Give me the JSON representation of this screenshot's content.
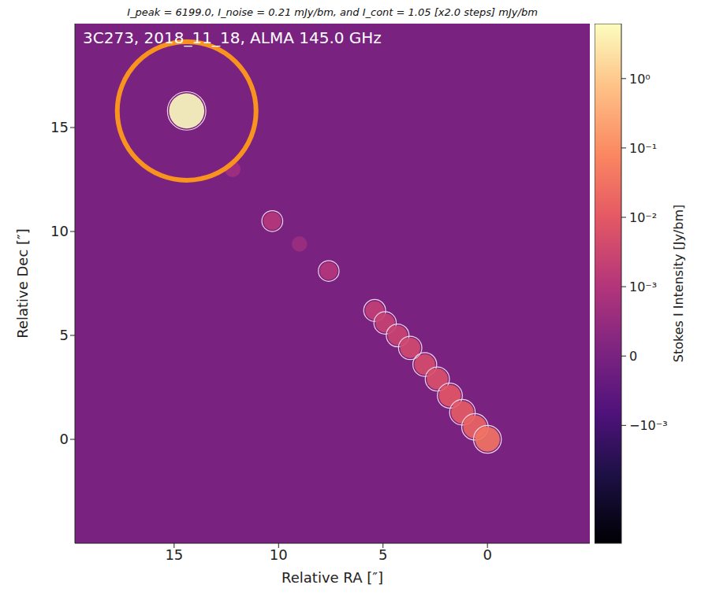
{
  "chart_data": {
    "type": "image",
    "title": "I_peak = 6199.0, I_noise = 0.21 mJy/bm, and I_cont = 1.05 [x2.0 steps] mJy/bm",
    "annotation": "3C273, 2018_11_18, ALMA 145.0 GHz",
    "x_label": "Relative RA [″]",
    "y_label": "Relative Dec [″]",
    "xlim": [
      19.75,
      -4.9
    ],
    "xticks": [
      15,
      10,
      5,
      0
    ],
    "ylim": [
      -5,
      20
    ],
    "yticks": [
      0,
      5,
      10,
      15
    ],
    "grid": false,
    "points": {
      "x": [
        12.2,
        10.3,
        9.0,
        7.6,
        5.4,
        4.9,
        4.3,
        3.7,
        3.0,
        2.4,
        1.8,
        1.2,
        0.6,
        0.0,
        14.4
      ],
      "y": [
        13.0,
        10.5,
        9.4,
        8.1,
        6.2,
        5.6,
        5.0,
        4.4,
        3.6,
        2.9,
        2.1,
        1.3,
        0.6,
        0.0,
        15.8
      ],
      "intensity": [
        0.0007,
        0.0012,
        0.0006,
        0.0011,
        0.002,
        0.0025,
        0.003,
        0.004,
        0.005,
        0.006,
        0.009,
        0.012,
        0.018,
        0.035,
        6.199
      ]
    },
    "colorbar": {
      "label": "Stokes I Intensity [Jy/bm]",
      "lim": [
        -0.05,
        6.199
      ],
      "linthresh": 0.001,
      "ticks": [
        {
          "value": 1,
          "label": "10⁰"
        },
        {
          "value": 0.1,
          "label": "10⁻¹"
        },
        {
          "value": 0.01,
          "label": "10⁻²"
        },
        {
          "value": 0.001,
          "label": "10⁻³"
        },
        0,
        {
          "value": -0.001,
          "label": "−10⁻³"
        }
      ]
    },
    "highlight": {
      "x": 14.4,
      "y": 15.8,
      "color": "#f7931e"
    }
  }
}
